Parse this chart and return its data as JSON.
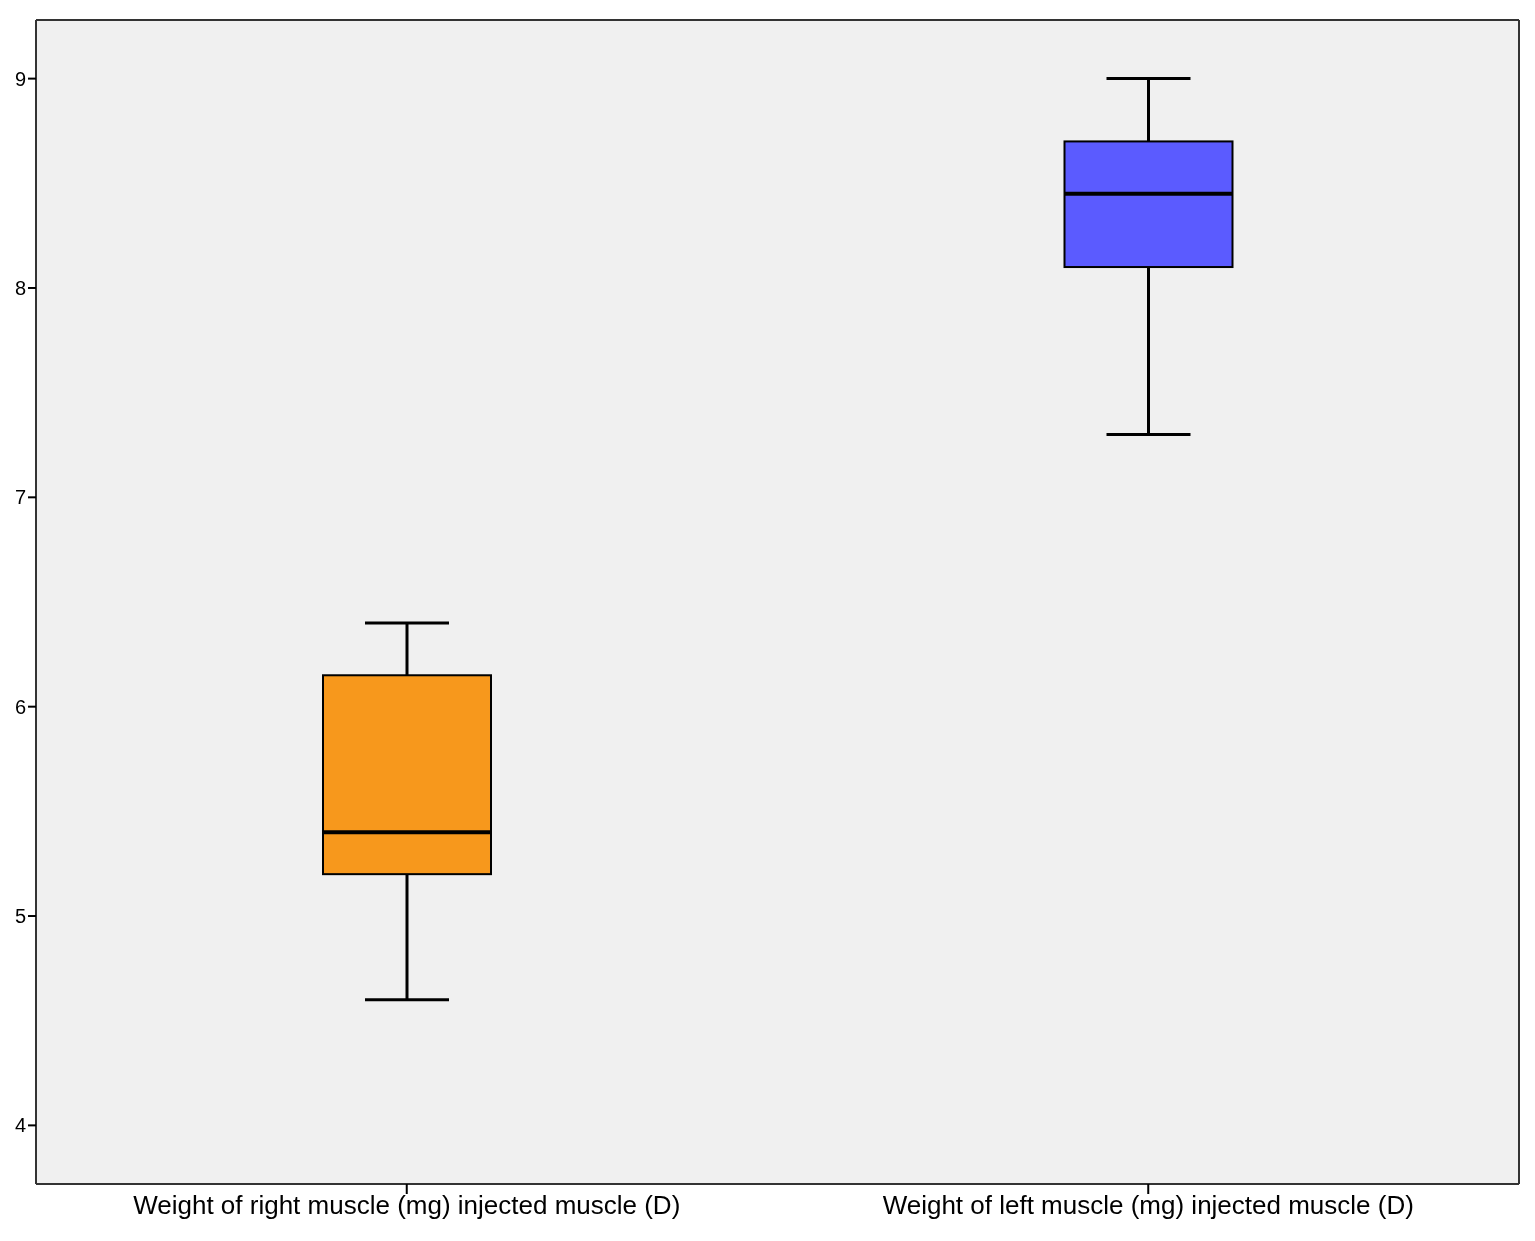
{
  "chart_data": {
    "type": "box",
    "categories": [
      "Weight of right muscle (mg) injected muscle (D)",
      "Weight of left muscle (mg) injected muscle (D)"
    ],
    "boxes": [
      {
        "low": 4.6,
        "q1": 5.2,
        "median": 5.4,
        "q3": 6.15,
        "high": 6.4
      },
      {
        "low": 7.3,
        "q1": 8.1,
        "median": 8.45,
        "q3": 8.7,
        "high": 9.0
      }
    ],
    "colors": [
      "#f7981c",
      "#5b5bff"
    ],
    "ylim": [
      3.72,
      9.28
    ],
    "yticks": [
      4,
      5,
      6,
      7,
      8,
      9
    ]
  }
}
